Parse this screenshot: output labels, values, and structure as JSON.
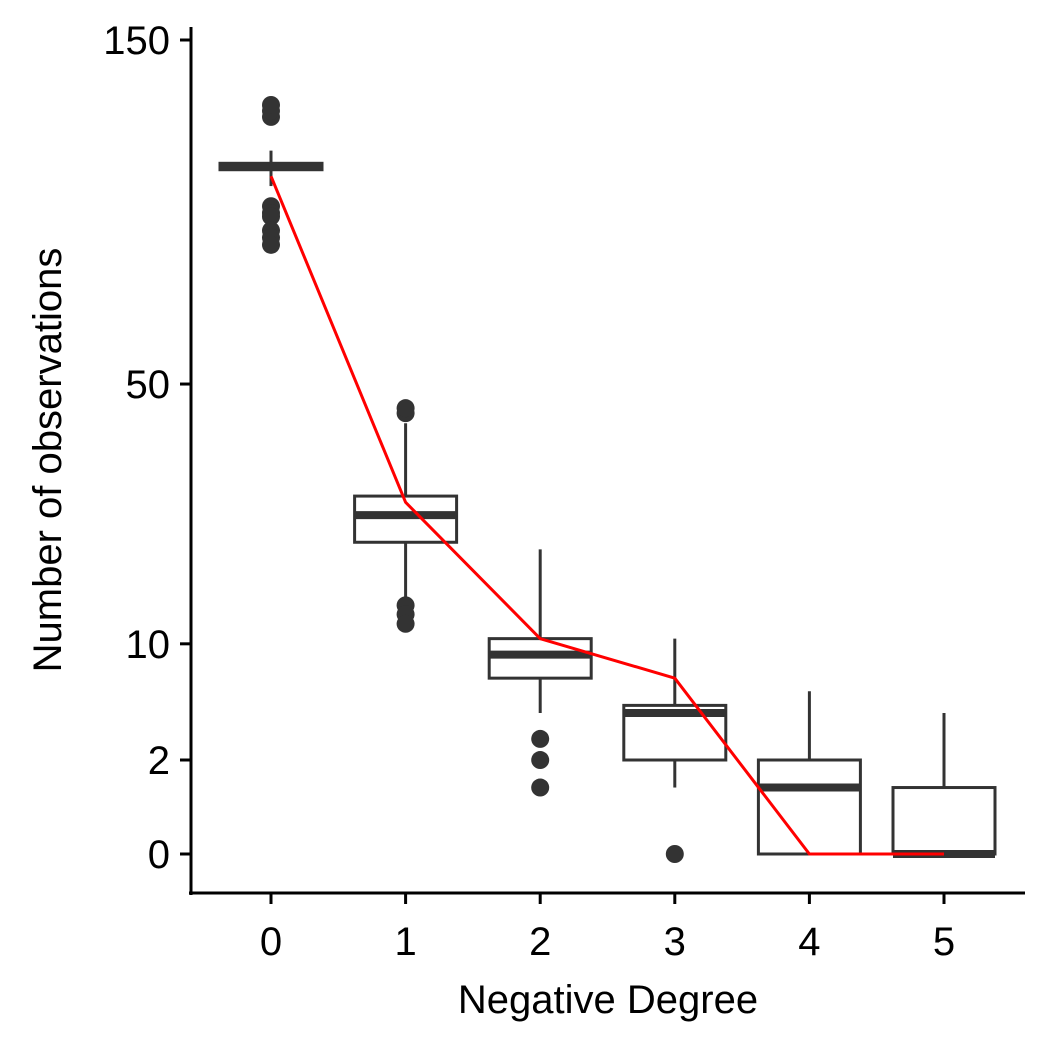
{
  "chart_data": {
    "type": "box",
    "xlabel": "Negative Degree",
    "ylabel": "Number of observations",
    "y_scale": "sqrt",
    "ylim": [
      0,
      150
    ],
    "yticks": [
      0,
      2,
      10,
      50,
      150
    ],
    "x_tick_labels": [
      "0",
      "1",
      "2",
      "3",
      "4",
      "5"
    ],
    "box_color": "#333333",
    "line_color": "#ff0000",
    "boxes": [
      {
        "category": "0",
        "lower_whisker": 101,
        "q1": 106,
        "median": 107,
        "q3": 108,
        "upper_whisker": 112,
        "outliers": [
          123,
          125,
          127,
          95,
          93,
          92,
          88,
          86,
          84
        ]
      },
      {
        "category": "1",
        "lower_whisker": 14,
        "q1": 22,
        "median": 26,
        "q3": 29,
        "upper_whisker": 42,
        "outliers": [
          44,
          45,
          14,
          13,
          12
        ]
      },
      {
        "category": "2",
        "lower_whisker": 4.5,
        "q1": 7,
        "median": 9,
        "q3": 10.5,
        "upper_whisker": 21,
        "outliers": [
          3,
          2,
          1
        ]
      },
      {
        "category": "3",
        "lower_whisker": 1,
        "q1": 2,
        "median": 4.5,
        "q3": 5,
        "upper_whisker": 10.5,
        "outliers": [
          0
        ]
      },
      {
        "category": "4",
        "lower_whisker": 0,
        "q1": 0,
        "median": 1,
        "q3": 2,
        "upper_whisker": 6,
        "outliers": []
      },
      {
        "category": "5",
        "lower_whisker": 0,
        "q1": 0,
        "median": 0,
        "q3": 1,
        "upper_whisker": 4.5,
        "outliers": []
      }
    ],
    "expected_line": {
      "x": [
        0,
        1,
        2,
        3,
        4,
        5
      ],
      "y": [
        104,
        28,
        10.5,
        7,
        0,
        0
      ]
    }
  }
}
